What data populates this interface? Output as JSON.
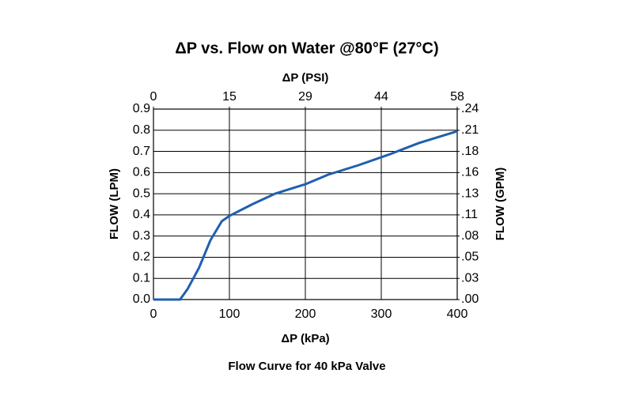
{
  "chart_data": {
    "type": "line",
    "title": "ΔP vs. Flow on Water @80°F (27°C)",
    "subtitle": "Flow Curve for 40 kPa Valve",
    "xlabel": "ΔP (kPa)",
    "x2label": "ΔP (PSI)",
    "ylabel": "FLOW (LPM)",
    "y2label": "FLOW (GPM)",
    "x": [
      0,
      35,
      45,
      60,
      75,
      90,
      100,
      130,
      160,
      200,
      230,
      270,
      310,
      350,
      400
    ],
    "values": [
      0,
      0,
      0.05,
      0.15,
      0.28,
      0.37,
      0.395,
      0.45,
      0.5,
      0.545,
      0.59,
      0.635,
      0.685,
      0.74,
      0.795
    ],
    "color": "#1f5fb0",
    "xlim": [
      0,
      400
    ],
    "xticks": [
      0,
      100,
      200,
      300,
      400
    ],
    "x2lim": [
      0,
      58
    ],
    "x2ticks": [
      0,
      {
        "value": 14.5,
        "label": "15"
      },
      29,
      {
        "value": 43.5,
        "label": "44"
      },
      58
    ],
    "ylim": [
      0,
      0.9
    ],
    "yticks": [
      {
        "value": 0,
        "label": "0.0"
      },
      0.1,
      0.2,
      0.3,
      0.4,
      0.5,
      0.6,
      0.7,
      0.8,
      0.9
    ],
    "y2lim": [
      0,
      0.2378
    ],
    "y2ticks": [
      {
        "value": 0,
        "label": ".00"
      },
      {
        "value": 0.0264,
        "label": ".03"
      },
      {
        "value": 0.0528,
        "label": ".05"
      },
      {
        "value": 0.0793,
        "label": ".08"
      },
      {
        "value": 0.1057,
        "label": ".11"
      },
      {
        "value": 0.1321,
        "label": ".13"
      },
      {
        "value": 0.1585,
        "label": ".16"
      },
      {
        "value": 0.1849,
        "label": ".18"
      },
      {
        "value": 0.2113,
        "label": ".21"
      },
      {
        "value": 0.2378,
        "label": ".24"
      }
    ],
    "grid": true
  }
}
